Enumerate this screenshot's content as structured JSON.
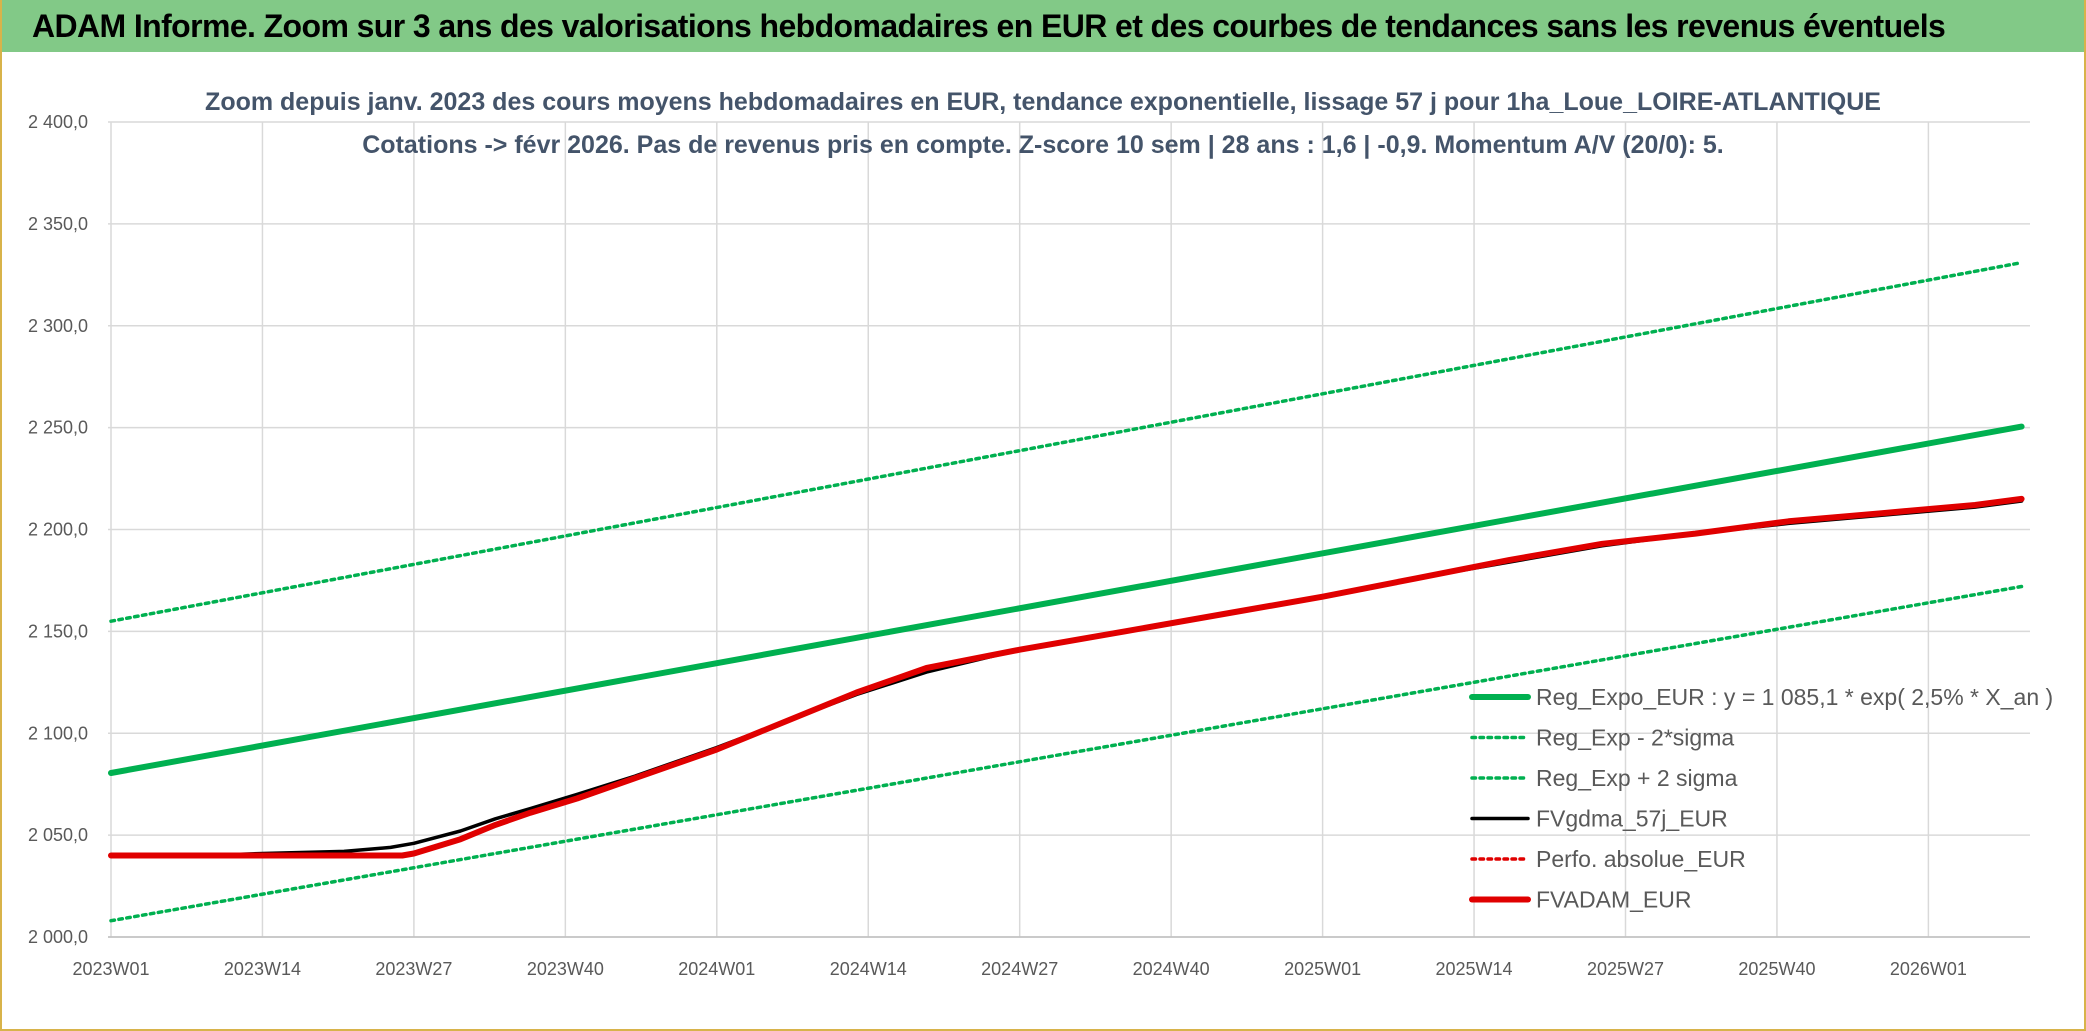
{
  "header": {
    "title": "ADAM Informe. Zoom sur 3 ans des valorisations hebdomadaires en EUR et des courbes de tendances sans les revenus éventuels"
  },
  "colors": {
    "header_bg": "#82c987",
    "frame_border": "#d8b34a",
    "title_text": "#44546a",
    "axis_text": "#595959",
    "green": "#00b050",
    "black": "#000000",
    "red": "#e00000",
    "grid": "#d9d9d9"
  },
  "chart_data": {
    "type": "line",
    "title": "Zoom depuis janv. 2023 des cours moyens hebdomadaires en EUR, tendance exponentielle, lissage 57 j pour 1ha_Loue_LOIRE-ATLANTIQUE",
    "subtitle": "Cotations -> févr 2026. Pas de revenus pris en compte. Z-score 10 sem | 28 ans : 1,6 | -0,9. Momentum A/V (20/0): 5.",
    "xlabel": "",
    "ylabel": "",
    "ylim": [
      2000,
      2400
    ],
    "y_ticks": [
      "2 000,0",
      "2 050,0",
      "2 100,0",
      "2 150,0",
      "2 200,0",
      "2 250,0",
      "2 300,0",
      "2 350,0",
      "2 400,0"
    ],
    "x_ticks": [
      "2023W01",
      "2023W14",
      "2023W27",
      "2023W40",
      "2024W01",
      "2024W14",
      "2024W27",
      "2024W40",
      "2025W01",
      "2025W14",
      "2025W27",
      "2025W40",
      "2026W01"
    ],
    "x_range_weeks": [
      0,
      164
    ],
    "grid": true,
    "legend_position": "right",
    "series": [
      {
        "name": "Reg_Expo_EUR : y = 1 085,1 * exp( 2,5% *  X_an )",
        "style": "solid-thick",
        "color": "#00b050",
        "x": [
          0,
          164
        ],
        "y": [
          2080.5,
          2250.5
        ]
      },
      {
        "name": "Reg_Exp - 2*sigma",
        "style": "dotted",
        "color": "#00b050",
        "x": [
          0,
          164
        ],
        "y": [
          2008,
          2172
        ]
      },
      {
        "name": "Reg_Exp + 2 sigma",
        "style": "dotted",
        "color": "#00b050",
        "x": [
          0,
          164
        ],
        "y": [
          2155,
          2331
        ]
      },
      {
        "name": "FVgdma_57j_EUR",
        "style": "solid",
        "color": "#000000",
        "x": [
          0,
          8,
          13,
          20,
          24,
          26,
          30,
          33,
          36,
          40,
          45,
          52,
          58,
          64,
          70,
          78,
          87,
          96,
          104,
          112,
          120,
          128,
          136,
          144,
          152,
          160,
          164
        ],
        "y": [
          2040,
          2040,
          2041,
          2042,
          2044,
          2046,
          2052,
          2058,
          2063,
          2070,
          2079,
          2093,
          2106,
          2119,
          2130,
          2141,
          2150,
          2159,
          2167,
          2176,
          2184,
          2192,
          2198,
          2203,
          2207,
          2211,
          2214
        ]
      },
      {
        "name": "Perfo. absolue_EUR",
        "style": "dotted",
        "color": "#e00000",
        "x": [],
        "y": []
      },
      {
        "name": "FVADAM_EUR",
        "style": "solid-thick",
        "color": "#e00000",
        "x": [
          0,
          10,
          20,
          25,
          26,
          30,
          33,
          36,
          40,
          45,
          52,
          58,
          64,
          70,
          78,
          87,
          96,
          104,
          112,
          120,
          128,
          136,
          144,
          152,
          160,
          164
        ],
        "y": [
          2040,
          2040,
          2040,
          2040,
          2041,
          2048,
          2055,
          2061,
          2068,
          2078,
          2092,
          2106,
          2120,
          2132,
          2141,
          2150,
          2159,
          2167,
          2176,
          2185,
          2193,
          2198,
          2204,
          2208,
          2212,
          2215
        ]
      }
    ]
  }
}
